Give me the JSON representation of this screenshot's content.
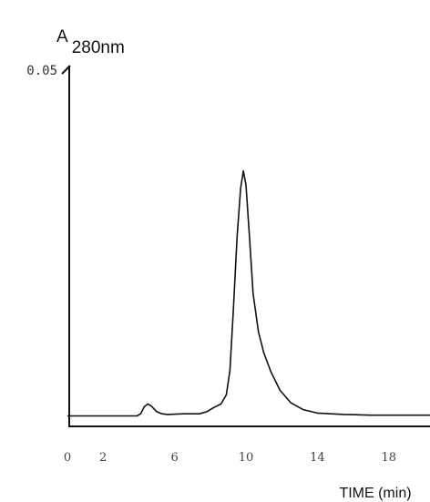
{
  "chart_data": {
    "type": "line",
    "title": "",
    "ylabel": {
      "main": "A",
      "sub": "280nm"
    },
    "xlabel": "TIME (min)",
    "y_tick_labels": [
      "0.05"
    ],
    "x_tick_labels": [
      "0",
      "2",
      "6",
      "10",
      "14",
      "18"
    ],
    "x_ticks": [
      0,
      2,
      6,
      10,
      14,
      18
    ],
    "xlim": [
      0,
      20.5
    ],
    "ylim": [
      0,
      0.05
    ],
    "grid": false,
    "series": [
      {
        "points": [
          [
            0,
            0.0015
          ],
          [
            3.9,
            0.0015
          ],
          [
            4.1,
            0.0018
          ],
          [
            4.3,
            0.0028
          ],
          [
            4.5,
            0.0032
          ],
          [
            4.7,
            0.0029
          ],
          [
            5.0,
            0.0021
          ],
          [
            5.3,
            0.0018
          ],
          [
            5.6,
            0.0017
          ],
          [
            6.5,
            0.0018
          ],
          [
            7.4,
            0.0018
          ],
          [
            7.8,
            0.0021
          ],
          [
            8.2,
            0.0027
          ],
          [
            8.6,
            0.0032
          ],
          [
            8.9,
            0.0045
          ],
          [
            9.1,
            0.008
          ],
          [
            9.3,
            0.017
          ],
          [
            9.5,
            0.027
          ],
          [
            9.7,
            0.034
          ],
          [
            9.85,
            0.0365
          ],
          [
            10.0,
            0.0345
          ],
          [
            10.2,
            0.027
          ],
          [
            10.4,
            0.019
          ],
          [
            10.7,
            0.0135
          ],
          [
            11.0,
            0.0105
          ],
          [
            11.4,
            0.0078
          ],
          [
            11.9,
            0.0052
          ],
          [
            12.5,
            0.0034
          ],
          [
            13.2,
            0.0024
          ],
          [
            14.0,
            0.0019
          ],
          [
            15.5,
            0.0017
          ],
          [
            17.0,
            0.0016
          ],
          [
            18.5,
            0.0016
          ],
          [
            20.5,
            0.0016
          ]
        ]
      }
    ]
  }
}
